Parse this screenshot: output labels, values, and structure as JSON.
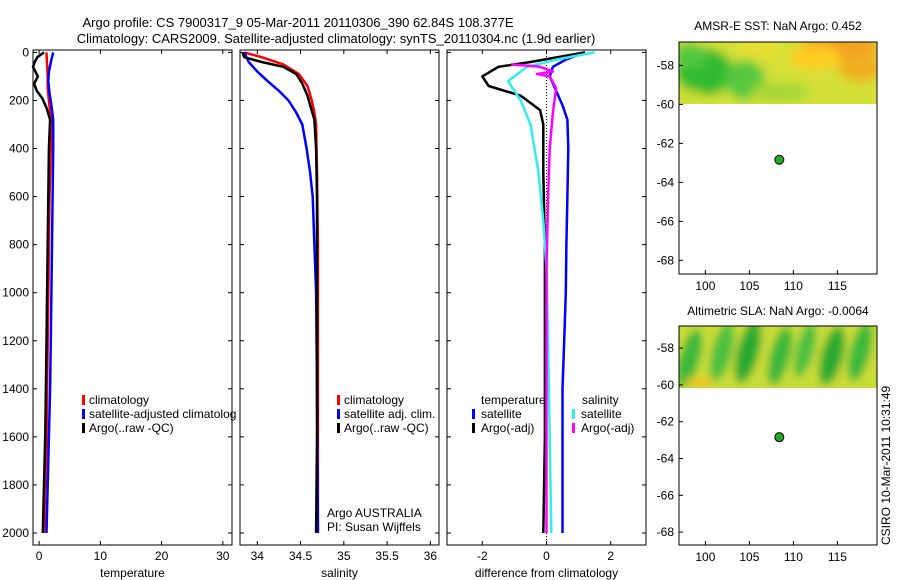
{
  "title_line1": "Argo profile: CS 7900317_9 05-Mar-2011 20110306_390 62.84S 108.377E",
  "title_line2": "Climatology: CARS2009. Satellite-adjusted climatology: synTS_20110304.nc (1.9d earlier)",
  "side_stamp": "CSIRO 10-Mar-2011 10:31:49",
  "colors": {
    "red": "#ff0000",
    "blue": "#0000ff",
    "black": "#000000",
    "cyan": "#33eeee",
    "magenta": "#ff00ff",
    "marker": "#22aa22"
  },
  "chart_data": [
    {
      "type": "line",
      "id": "temperature",
      "xlabel": "temperature",
      "xlim": [
        -1,
        31.5
      ],
      "ylim": [
        2050,
        -10
      ],
      "xticks": [
        0,
        10,
        20,
        30
      ],
      "yticks": [
        0,
        200,
        400,
        600,
        800,
        1000,
        1200,
        1400,
        1600,
        1800,
        2000
      ],
      "legend": [
        "climatology",
        "satellite-adjusted climatolog",
        "Argo(..raw -QC)"
      ],
      "series": [
        {
          "name": "climatology",
          "color": "red",
          "points": [
            [
              1.2,
              0
            ],
            [
              1.3,
              50
            ],
            [
              1.4,
              100
            ],
            [
              1.4,
              150
            ],
            [
              1.6,
              200
            ],
            [
              1.8,
              250
            ],
            [
              2.0,
              300
            ],
            [
              1.9,
              400
            ],
            [
              1.7,
              600
            ],
            [
              1.6,
              800
            ],
            [
              1.5,
              1000
            ],
            [
              1.4,
              1200
            ],
            [
              1.3,
              1400
            ],
            [
              1.2,
              1600
            ],
            [
              1.0,
              1800
            ],
            [
              0.8,
              2000
            ]
          ]
        },
        {
          "name": "satellite-adjusted climatolog",
          "color": "blue",
          "points": [
            [
              2.3,
              0
            ],
            [
              2.0,
              30
            ],
            [
              1.6,
              80
            ],
            [
              1.5,
              120
            ],
            [
              1.7,
              170
            ],
            [
              2.0,
              220
            ],
            [
              2.3,
              280
            ],
            [
              2.3,
              400
            ],
            [
              2.2,
              600
            ],
            [
              2.1,
              800
            ],
            [
              2.0,
              1000
            ],
            [
              1.9,
              1200
            ],
            [
              1.8,
              1400
            ],
            [
              1.6,
              1600
            ],
            [
              1.4,
              1800
            ],
            [
              1.2,
              2000
            ]
          ]
        },
        {
          "name": "Argo(..raw -QC)",
          "color": "black",
          "points": [
            [
              0.8,
              0
            ],
            [
              -0.3,
              20
            ],
            [
              -0.7,
              40
            ],
            [
              -1.0,
              60
            ],
            [
              -0.6,
              80
            ],
            [
              -0.2,
              100
            ],
            [
              -0.8,
              130
            ],
            [
              -0.4,
              160
            ],
            [
              0.5,
              190
            ],
            [
              1.2,
              230
            ],
            [
              1.8,
              280
            ],
            [
              1.6,
              400
            ],
            [
              1.5,
              600
            ],
            [
              1.4,
              800
            ],
            [
              1.3,
              1000
            ],
            [
              1.2,
              1200
            ],
            [
              1.1,
              1400
            ],
            [
              1.0,
              1600
            ],
            [
              0.8,
              1800
            ],
            [
              0.6,
              2000
            ]
          ]
        }
      ]
    },
    {
      "type": "line",
      "id": "salinity",
      "xlabel": "salinity",
      "xlim": [
        33.8,
        36.1
      ],
      "ylim": [
        2050,
        -10
      ],
      "xticks": [
        34,
        34.5,
        35,
        35.5,
        36
      ],
      "legend": [
        "climatology",
        "satellite adj. clim.",
        "Argo(..raw -QC)"
      ],
      "annotation": [
        "Argo AUSTRALIA",
        "PI: Susan Wijffels"
      ],
      "series": [
        {
          "name": "climatology",
          "color": "red",
          "points": [
            [
              33.85,
              0
            ],
            [
              34.05,
              20
            ],
            [
              34.3,
              50
            ],
            [
              34.48,
              90
            ],
            [
              34.58,
              140
            ],
            [
              34.63,
              200
            ],
            [
              34.66,
              250
            ],
            [
              34.68,
              300
            ],
            [
              34.69,
              500
            ],
            [
              34.7,
              800
            ],
            [
              34.7,
              1200
            ],
            [
              34.7,
              1600
            ],
            [
              34.7,
              2000
            ]
          ]
        },
        {
          "name": "satellite adj. clim.",
          "color": "blue",
          "points": [
            [
              33.85,
              0
            ],
            [
              33.9,
              40
            ],
            [
              34.0,
              80
            ],
            [
              34.12,
              120
            ],
            [
              34.25,
              160
            ],
            [
              34.36,
              200
            ],
            [
              34.45,
              250
            ],
            [
              34.52,
              300
            ],
            [
              34.57,
              400
            ],
            [
              34.61,
              500
            ],
            [
              34.64,
              600
            ],
            [
              34.66,
              800
            ],
            [
              34.68,
              1000
            ],
            [
              34.69,
              1400
            ],
            [
              34.7,
              2000
            ]
          ]
        },
        {
          "name": "Argo(..raw -QC)",
          "color": "black",
          "points": [
            [
              33.83,
              0
            ],
            [
              33.85,
              20
            ],
            [
              34.05,
              40
            ],
            [
              34.3,
              60
            ],
            [
              34.45,
              90
            ],
            [
              34.52,
              130
            ],
            [
              34.58,
              180
            ],
            [
              34.62,
              230
            ],
            [
              34.66,
              280
            ],
            [
              34.68,
              400
            ],
            [
              34.69,
              600
            ],
            [
              34.69,
              900
            ],
            [
              34.69,
              1200
            ],
            [
              34.69,
              1600
            ],
            [
              34.68,
              2000
            ]
          ]
        }
      ]
    },
    {
      "type": "line",
      "id": "difference",
      "xlabel": "difference from climatology",
      "xlim": [
        -3.1,
        3.1
      ],
      "ylim": [
        2050,
        -10
      ],
      "xticks": [
        -2,
        0,
        2
      ],
      "legend_groups": [
        {
          "header": "temperature",
          "items": [
            "satellite",
            "Argo(-adj)"
          ]
        },
        {
          "header": "salinity",
          "items": [
            "satellite",
            "Argo(-adj)"
          ]
        }
      ],
      "series": [
        {
          "name": "temperature satellite",
          "color": "blue",
          "points": [
            [
              1.2,
              0
            ],
            [
              0.6,
              30
            ],
            [
              0.2,
              60
            ],
            [
              0.1,
              100
            ],
            [
              0.3,
              160
            ],
            [
              0.5,
              220
            ],
            [
              0.65,
              280
            ],
            [
              0.68,
              400
            ],
            [
              0.65,
              600
            ],
            [
              0.62,
              800
            ],
            [
              0.6,
              1000
            ],
            [
              0.55,
              1200
            ],
            [
              0.5,
              1400
            ],
            [
              0.5,
              1600
            ],
            [
              0.5,
              1800
            ],
            [
              0.5,
              2000
            ]
          ]
        },
        {
          "name": "temperature Argo(-adj)",
          "color": "black",
          "points": [
            [
              1.2,
              0
            ],
            [
              -0.5,
              40
            ],
            [
              -1.5,
              60
            ],
            [
              -2.0,
              100
            ],
            [
              -1.8,
              140
            ],
            [
              -0.8,
              180
            ],
            [
              -0.2,
              240
            ],
            [
              -0.1,
              300
            ],
            [
              -0.1,
              500
            ],
            [
              -0.05,
              800
            ],
            [
              -0.05,
              1200
            ],
            [
              -0.05,
              1600
            ],
            [
              -0.1,
              2000
            ]
          ]
        },
        {
          "name": "salinity satellite",
          "color": "cyan",
          "points": [
            [
              1.5,
              0
            ],
            [
              0.3,
              30
            ],
            [
              -0.6,
              60
            ],
            [
              -1.2,
              120
            ],
            [
              -0.8,
              200
            ],
            [
              -0.5,
              300
            ],
            [
              -0.25,
              500
            ],
            [
              -0.1,
              700
            ],
            [
              0.0,
              900
            ],
            [
              0.05,
              1200
            ],
            [
              0.1,
              1600
            ],
            [
              0.15,
              2000
            ]
          ]
        },
        {
          "name": "salinity Argo(-adj)",
          "color": "magenta",
          "points": [
            [
              -1.1,
              50
            ],
            [
              -0.2,
              60
            ],
            [
              0.2,
              80
            ],
            [
              -0.3,
              90
            ],
            [
              0.1,
              100
            ],
            [
              0.3,
              150
            ],
            [
              0.2,
              250
            ],
            [
              0.1,
              400
            ],
            [
              0.05,
              600
            ],
            [
              0.0,
              900
            ],
            [
              0.0,
              1200
            ],
            [
              0.0,
              1600
            ],
            [
              0.0,
              2000
            ]
          ]
        }
      ]
    },
    {
      "type": "heatmap",
      "id": "amsre",
      "title": "AMSR-E SST: NaN Argo: 0.452",
      "xlim": [
        97,
        119.5
      ],
      "ylim": [
        -68.7,
        -56.8
      ],
      "xticks": [
        100,
        105,
        110,
        115
      ],
      "yticks": [
        -58,
        -60,
        -62,
        -64,
        -66,
        -68
      ],
      "marker": {
        "lon": 108.4,
        "lat": -62.84
      }
    },
    {
      "type": "heatmap",
      "id": "altimetric",
      "title": "Altimetric SLA: NaN Argo: -0.0064",
      "xlim": [
        97,
        119.5
      ],
      "ylim": [
        -68.7,
        -56.8
      ],
      "xticks": [
        100,
        105,
        110,
        115
      ],
      "yticks": [
        -58,
        -60,
        -62,
        -64,
        -66,
        -68
      ],
      "marker": {
        "lon": 108.4,
        "lat": -62.84
      }
    }
  ]
}
